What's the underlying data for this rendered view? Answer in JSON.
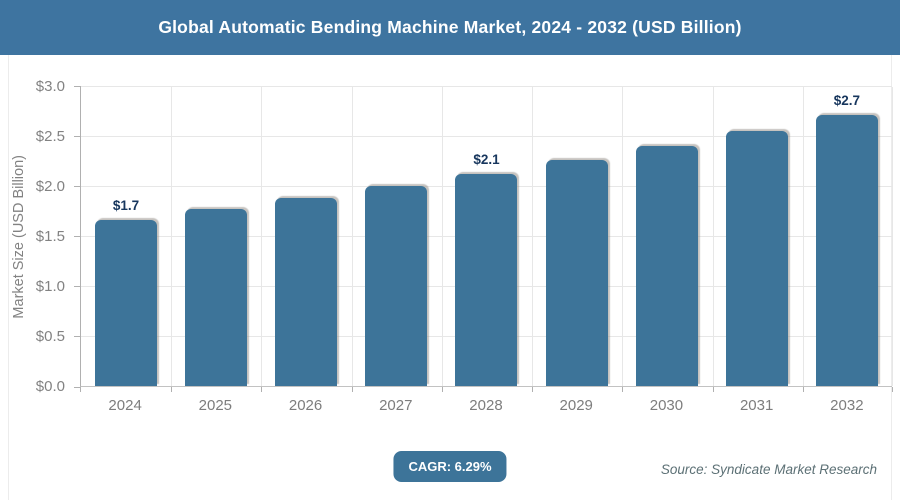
{
  "header": {
    "title": "Global Automatic Bending Machine Market, 2024 - 2032 (USD Billion)"
  },
  "chart_data": {
    "type": "bar",
    "title": "Global Automatic Bending Machine Market, 2024 - 2032 (USD Billion)",
    "categories": [
      "2024",
      "2025",
      "2026",
      "2027",
      "2028",
      "2029",
      "2030",
      "2031",
      "2032"
    ],
    "values": [
      1.66,
      1.77,
      1.88,
      2.0,
      2.12,
      2.26,
      2.4,
      2.55,
      2.71
    ],
    "data_labels": {
      "2024": "$1.7",
      "2028": "$2.1",
      "2032": "$2.7"
    },
    "xlabel": "",
    "ylabel": "Market Size (USD Billion)",
    "ylim": [
      0,
      3.0
    ],
    "ytick_step": 0.5,
    "yticks": [
      "$0.0",
      "$0.5",
      "$1.0",
      "$1.5",
      "$2.0",
      "$2.5",
      "$3.0"
    ],
    "grid": true,
    "legend": "none"
  },
  "footer": {
    "cagr_label": "CAGR: 6.29%",
    "source": "Source: Syndicate Market Research"
  },
  "colors": {
    "header_bg": "#3e74a0",
    "bar": "#3d7499",
    "badge_bg": "#3d7499",
    "data_label": "#17365d"
  }
}
